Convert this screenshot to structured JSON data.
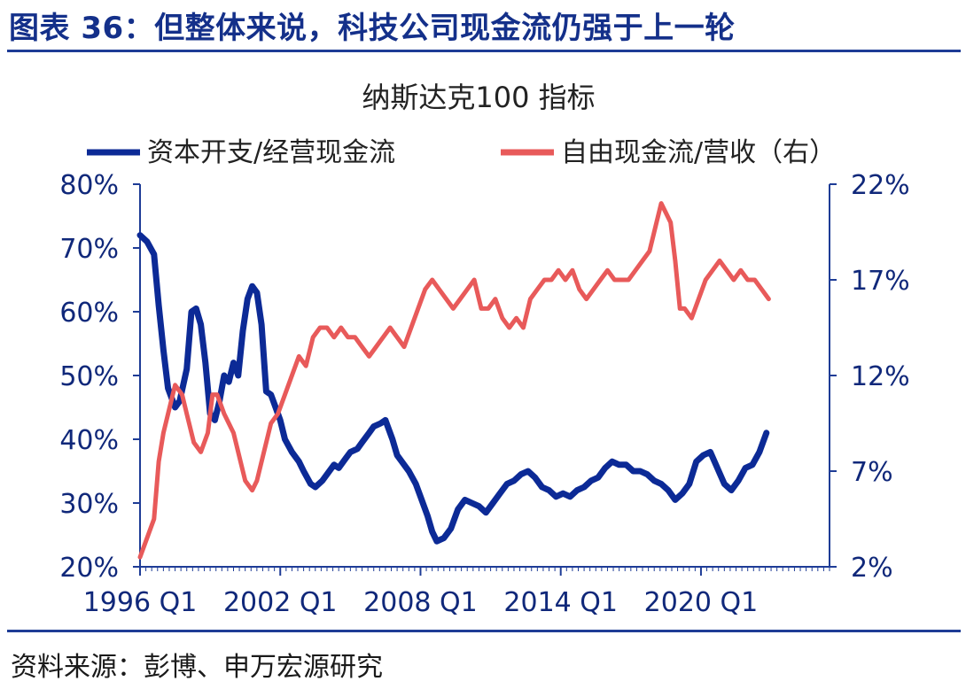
{
  "header": {
    "title": "图表 36：但整体来说，科技公司现金流仍强于上一轮"
  },
  "footer": {
    "source": "资料来源：彭博、申万宏源研究"
  },
  "colors": {
    "axis": "#1e3c96",
    "series_capex": "#0c2a96",
    "series_fcf": "#e85a5a"
  },
  "chart_data": {
    "type": "line",
    "title": "纳斯达克100 指标",
    "legend": "top",
    "x_start": 1996.0,
    "x_end": 2025.5,
    "x_ticks": [
      {
        "x": 1996.0,
        "label": "1996 Q1"
      },
      {
        "x": 2002.0,
        "label": "2002 Q1"
      },
      {
        "x": 2008.0,
        "label": "2008 Q1"
      },
      {
        "x": 2014.0,
        "label": "2014 Q1"
      },
      {
        "x": 2020.0,
        "label": "2020 Q1"
      }
    ],
    "y_left": {
      "min": 20,
      "max": 80,
      "ticks": [
        "80%",
        "70%",
        "60%",
        "50%",
        "40%",
        "30%",
        "20%"
      ]
    },
    "y_right": {
      "min": 2,
      "max": 22,
      "ticks": [
        "22%",
        "17%",
        "12%",
        "7%",
        "2%"
      ]
    },
    "series": [
      {
        "name": "资本开支/经营现金流",
        "axis": "left",
        "points": [
          [
            1996.0,
            72.0
          ],
          [
            1996.3,
            71.0
          ],
          [
            1996.6,
            69.0
          ],
          [
            1996.8,
            61.0
          ],
          [
            1997.0,
            54.0
          ],
          [
            1997.2,
            48.0
          ],
          [
            1997.5,
            45.0
          ],
          [
            1997.7,
            46.0
          ],
          [
            1998.0,
            51.0
          ],
          [
            1998.2,
            60.0
          ],
          [
            1998.4,
            60.5
          ],
          [
            1998.6,
            58.0
          ],
          [
            1998.8,
            52.0
          ],
          [
            1999.0,
            44.0
          ],
          [
            1999.2,
            43.0
          ],
          [
            1999.4,
            46.0
          ],
          [
            1999.6,
            50.0
          ],
          [
            1999.8,
            49.0
          ],
          [
            2000.0,
            52.0
          ],
          [
            2000.2,
            50.0
          ],
          [
            2000.4,
            57.0
          ],
          [
            2000.6,
            62.0
          ],
          [
            2000.8,
            64.0
          ],
          [
            2001.0,
            63.0
          ],
          [
            2001.2,
            58.0
          ],
          [
            2001.4,
            47.5
          ],
          [
            2001.6,
            47.0
          ],
          [
            2001.8,
            45.0
          ],
          [
            2002.0,
            43.0
          ],
          [
            2002.2,
            40.0
          ],
          [
            2002.5,
            38.0
          ],
          [
            2002.8,
            36.5
          ],
          [
            2003.0,
            35.0
          ],
          [
            2003.3,
            33.0
          ],
          [
            2003.5,
            32.5
          ],
          [
            2003.8,
            33.5
          ],
          [
            2004.0,
            34.5
          ],
          [
            2004.3,
            36.0
          ],
          [
            2004.5,
            35.5
          ],
          [
            2004.8,
            37.0
          ],
          [
            2005.0,
            38.0
          ],
          [
            2005.3,
            38.5
          ],
          [
            2005.5,
            39.5
          ],
          [
            2005.8,
            41.0
          ],
          [
            2006.0,
            42.0
          ],
          [
            2006.3,
            42.5
          ],
          [
            2006.5,
            43.0
          ],
          [
            2006.8,
            40.0
          ],
          [
            2007.0,
            37.5
          ],
          [
            2007.3,
            36.0
          ],
          [
            2007.5,
            35.0
          ],
          [
            2007.8,
            33.0
          ],
          [
            2008.0,
            31.0
          ],
          [
            2008.3,
            28.0
          ],
          [
            2008.5,
            25.5
          ],
          [
            2008.7,
            24.0
          ],
          [
            2009.0,
            24.5
          ],
          [
            2009.3,
            26.0
          ],
          [
            2009.6,
            29.0
          ],
          [
            2009.9,
            30.5
          ],
          [
            2010.2,
            30.0
          ],
          [
            2010.5,
            29.5
          ],
          [
            2010.8,
            28.5
          ],
          [
            2011.1,
            30.0
          ],
          [
            2011.4,
            31.5
          ],
          [
            2011.7,
            33.0
          ],
          [
            2012.0,
            33.5
          ],
          [
            2012.3,
            34.5
          ],
          [
            2012.6,
            35.0
          ],
          [
            2012.9,
            34.0
          ],
          [
            2013.2,
            32.5
          ],
          [
            2013.5,
            32.0
          ],
          [
            2013.8,
            31.0
          ],
          [
            2014.1,
            31.5
          ],
          [
            2014.4,
            31.0
          ],
          [
            2014.7,
            32.0
          ],
          [
            2015.0,
            32.5
          ],
          [
            2015.3,
            33.5
          ],
          [
            2015.6,
            34.0
          ],
          [
            2015.9,
            35.5
          ],
          [
            2016.2,
            36.5
          ],
          [
            2016.5,
            36.0
          ],
          [
            2016.8,
            36.0
          ],
          [
            2017.1,
            35.0
          ],
          [
            2017.4,
            35.0
          ],
          [
            2017.7,
            34.5
          ],
          [
            2018.0,
            33.5
          ],
          [
            2018.3,
            33.0
          ],
          [
            2018.6,
            32.0
          ],
          [
            2018.9,
            30.5
          ],
          [
            2019.2,
            31.5
          ],
          [
            2019.5,
            33.0
          ],
          [
            2019.8,
            36.5
          ],
          [
            2020.1,
            37.5
          ],
          [
            2020.4,
            38.0
          ],
          [
            2020.7,
            35.5
          ],
          [
            2021.0,
            33.0
          ],
          [
            2021.3,
            32.0
          ],
          [
            2021.6,
            33.5
          ],
          [
            2021.9,
            35.5
          ],
          [
            2022.2,
            36.0
          ],
          [
            2022.5,
            38.0
          ],
          [
            2022.8,
            41.0
          ]
        ]
      },
      {
        "name": "自由现金流/营收（右）",
        "axis": "right",
        "points": [
          [
            1996.0,
            2.5
          ],
          [
            1996.3,
            3.5
          ],
          [
            1996.6,
            4.5
          ],
          [
            1996.8,
            7.5
          ],
          [
            1997.0,
            9.0
          ],
          [
            1997.3,
            10.5
          ],
          [
            1997.5,
            11.5
          ],
          [
            1997.8,
            11.0
          ],
          [
            1998.0,
            10.0
          ],
          [
            1998.3,
            8.5
          ],
          [
            1998.6,
            8.0
          ],
          [
            1998.9,
            9.0
          ],
          [
            1999.1,
            11.0
          ],
          [
            1999.3,
            11.0
          ],
          [
            1999.6,
            10.0
          ],
          [
            1999.8,
            9.5
          ],
          [
            2000.0,
            9.0
          ],
          [
            2000.3,
            7.5
          ],
          [
            2000.5,
            6.5
          ],
          [
            2000.8,
            6.0
          ],
          [
            2001.0,
            6.5
          ],
          [
            2001.3,
            8.0
          ],
          [
            2001.6,
            9.5
          ],
          [
            2001.9,
            10.0
          ],
          [
            2002.2,
            11.0
          ],
          [
            2002.5,
            12.0
          ],
          [
            2002.8,
            13.0
          ],
          [
            2003.1,
            12.5
          ],
          [
            2003.4,
            14.0
          ],
          [
            2003.7,
            14.5
          ],
          [
            2004.0,
            14.5
          ],
          [
            2004.3,
            14.0
          ],
          [
            2004.6,
            14.5
          ],
          [
            2004.9,
            14.0
          ],
          [
            2005.2,
            14.0
          ],
          [
            2005.5,
            13.5
          ],
          [
            2005.8,
            13.0
          ],
          [
            2006.1,
            13.5
          ],
          [
            2006.4,
            14.0
          ],
          [
            2006.7,
            14.5
          ],
          [
            2007.0,
            14.0
          ],
          [
            2007.3,
            13.5
          ],
          [
            2007.6,
            14.5
          ],
          [
            2007.9,
            15.5
          ],
          [
            2008.2,
            16.5
          ],
          [
            2008.5,
            17.0
          ],
          [
            2008.8,
            16.5
          ],
          [
            2009.1,
            16.0
          ],
          [
            2009.4,
            15.5
          ],
          [
            2009.7,
            16.0
          ],
          [
            2010.0,
            16.5
          ],
          [
            2010.3,
            17.0
          ],
          [
            2010.6,
            15.5
          ],
          [
            2010.9,
            15.5
          ],
          [
            2011.2,
            16.0
          ],
          [
            2011.5,
            15.0
          ],
          [
            2011.8,
            14.5
          ],
          [
            2012.1,
            15.0
          ],
          [
            2012.4,
            14.5
          ],
          [
            2012.7,
            16.0
          ],
          [
            2013.0,
            16.5
          ],
          [
            2013.3,
            17.0
          ],
          [
            2013.6,
            17.0
          ],
          [
            2013.9,
            17.5
          ],
          [
            2014.2,
            17.0
          ],
          [
            2014.5,
            17.5
          ],
          [
            2014.8,
            16.5
          ],
          [
            2015.1,
            16.0
          ],
          [
            2015.4,
            16.5
          ],
          [
            2015.7,
            17.0
          ],
          [
            2016.0,
            17.5
          ],
          [
            2016.3,
            17.0
          ],
          [
            2016.6,
            17.0
          ],
          [
            2016.9,
            17.0
          ],
          [
            2017.2,
            17.5
          ],
          [
            2017.5,
            18.0
          ],
          [
            2017.8,
            18.5
          ],
          [
            2018.1,
            20.0
          ],
          [
            2018.3,
            21.0
          ],
          [
            2018.5,
            20.5
          ],
          [
            2018.7,
            20.0
          ],
          [
            2018.9,
            18.0
          ],
          [
            2019.1,
            15.5
          ],
          [
            2019.3,
            15.5
          ],
          [
            2019.6,
            15.0
          ],
          [
            2019.9,
            16.0
          ],
          [
            2020.2,
            17.0
          ],
          [
            2020.5,
            17.5
          ],
          [
            2020.8,
            18.0
          ],
          [
            2021.1,
            17.5
          ],
          [
            2021.4,
            17.0
          ],
          [
            2021.7,
            17.5
          ],
          [
            2022.0,
            17.0
          ],
          [
            2022.3,
            17.0
          ],
          [
            2022.6,
            16.5
          ],
          [
            2022.9,
            16.0
          ]
        ]
      }
    ]
  }
}
